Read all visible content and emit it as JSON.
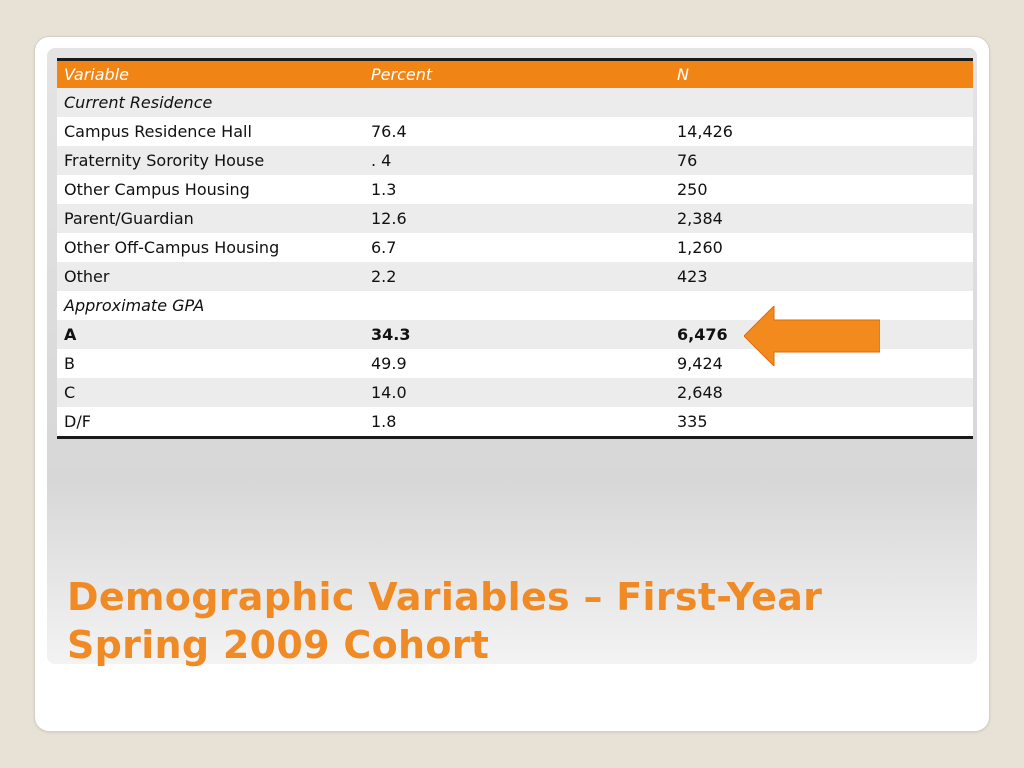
{
  "table": {
    "headers": {
      "variable": "Variable",
      "percent": "Percent",
      "n": "N"
    },
    "rows": [
      {
        "type": "section",
        "variable": "Current Residence",
        "percent": "",
        "n": ""
      },
      {
        "type": "data",
        "variable": "Campus Residence Hall",
        "percent": "76.4",
        "n": "14,426"
      },
      {
        "type": "data",
        "variable": "Fraternity Sorority House",
        "percent": ". 4",
        "n": "76"
      },
      {
        "type": "data",
        "variable": "Other Campus Housing",
        "percent": "1.3",
        "n": "250"
      },
      {
        "type": "data",
        "variable": "Parent/Guardian",
        "percent": "12.6",
        "n": "2,384"
      },
      {
        "type": "data",
        "variable": "Other Off-Campus Housing",
        "percent": "6.7",
        "n": "1,260"
      },
      {
        "type": "data",
        "variable": "Other",
        "percent": "2.2",
        "n": "423"
      },
      {
        "type": "section",
        "variable": "Approximate GPA",
        "percent": "",
        "n": ""
      },
      {
        "type": "highlight",
        "variable": "A",
        "percent": "34.3",
        "n": "6,476"
      },
      {
        "type": "data",
        "variable": "B",
        "percent": "49.9",
        "n": "9,424"
      },
      {
        "type": "data",
        "variable": "C",
        "percent": "14.0",
        "n": "2,648"
      },
      {
        "type": "data",
        "variable": "D/F",
        "percent": "1.8",
        "n": "335"
      }
    ]
  },
  "title": {
    "line1": "Demographic Variables – First-Year",
    "line2": "Spring 2009 Cohort"
  },
  "colors": {
    "accent": "#f08515",
    "title": "#f08a24"
  },
  "arrow": {
    "icon": "left-arrow-icon",
    "points_to": "A"
  }
}
